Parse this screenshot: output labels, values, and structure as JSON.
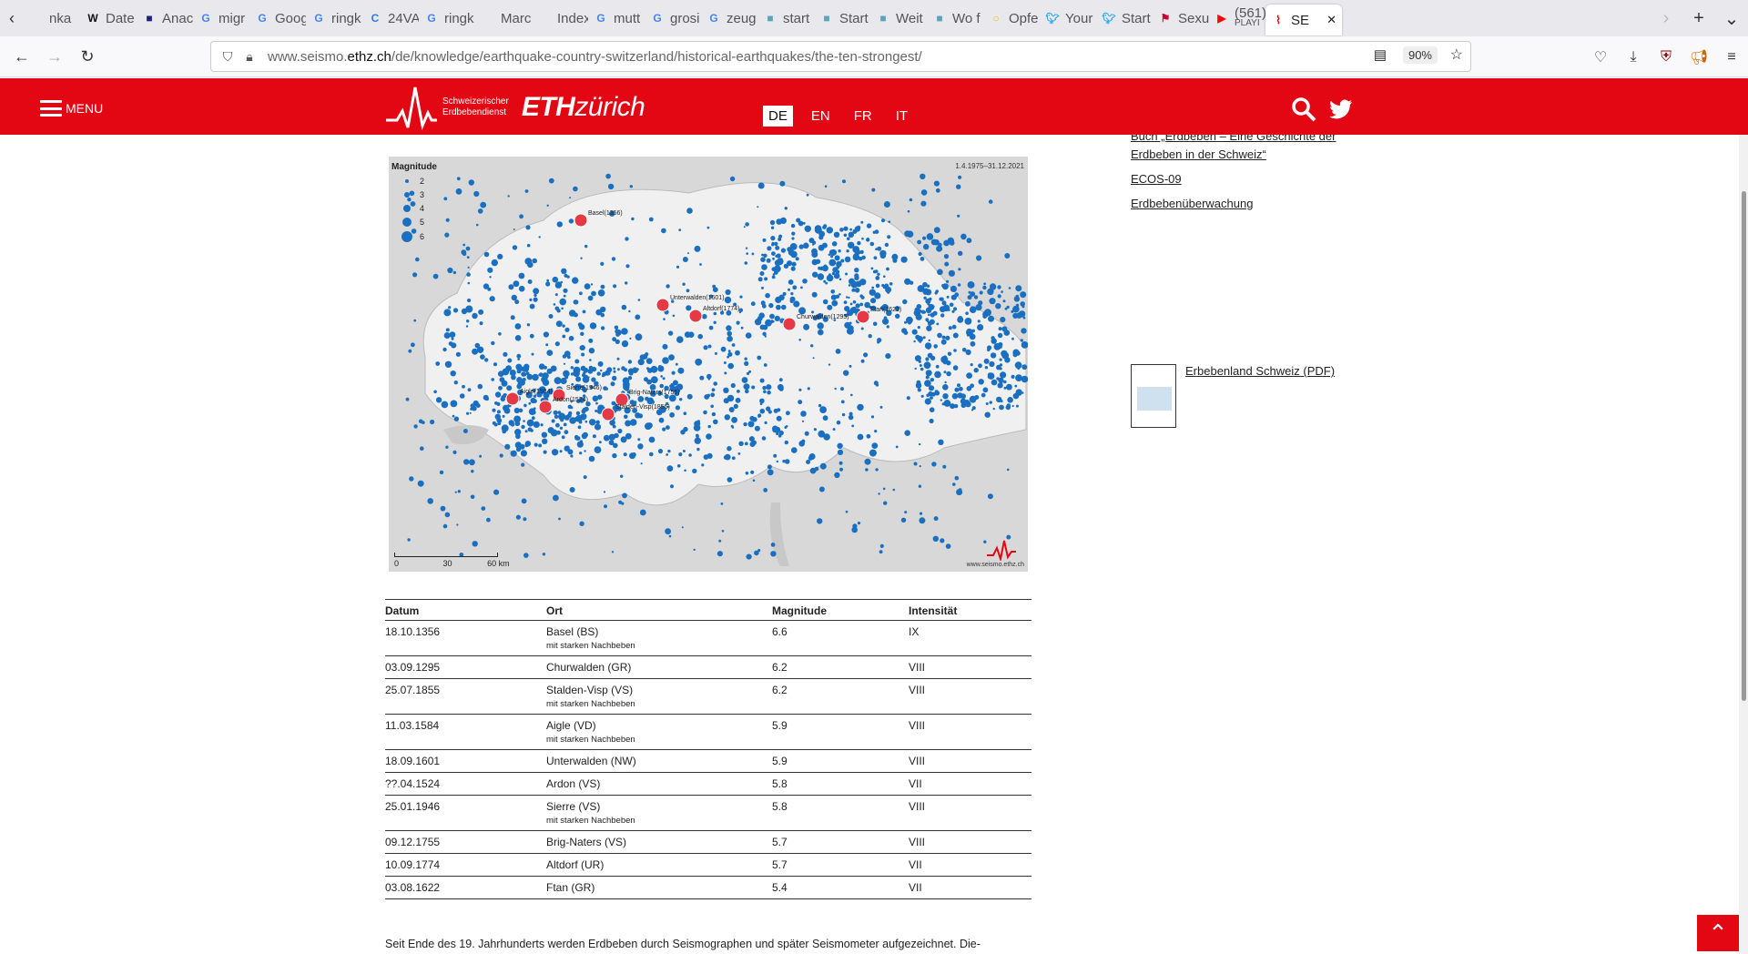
{
  "browser": {
    "tabs": [
      {
        "label": "nka",
        "icon": "text"
      },
      {
        "label": "Date",
        "icon": "W"
      },
      {
        "label": "Anac",
        "icon": "square-blue"
      },
      {
        "label": "migr",
        "icon": "G"
      },
      {
        "label": "Goog",
        "icon": "G-translate"
      },
      {
        "label": "ringk",
        "icon": "G"
      },
      {
        "label": "24VA",
        "icon": "C"
      },
      {
        "label": "ringk",
        "icon": "G"
      },
      {
        "label": "Marc",
        "icon": "text"
      },
      {
        "label": "Index of",
        "icon": "none"
      },
      {
        "label": "mutt",
        "icon": "G"
      },
      {
        "label": "grosi",
        "icon": "G"
      },
      {
        "label": "zeug",
        "icon": "G"
      },
      {
        "label": "start",
        "icon": "square-teal"
      },
      {
        "label": "Start",
        "icon": "square-teal"
      },
      {
        "label": "Weit",
        "icon": "square-teal"
      },
      {
        "label": "Wo f",
        "icon": "square-teal"
      },
      {
        "label": "Opfe",
        "icon": "circle-yellow"
      },
      {
        "label": "Your",
        "icon": "twitter"
      },
      {
        "label": "Start",
        "icon": "twitter"
      },
      {
        "label": "Sexu",
        "icon": "flag"
      },
      {
        "label": "(561)",
        "sub": "PLAYI",
        "icon": "youtube"
      },
      {
        "label": "SE",
        "icon": "seismo",
        "active": true
      }
    ],
    "url_prefix": "www.seismo.",
    "url_domain": "ethz.ch",
    "url_path": "/de/knowledge/earthquake-country-switzerland/historical-earthquakes/the-ten-strongest/",
    "zoom": "90%",
    "ext_badge": "2"
  },
  "header": {
    "menu_label": "MENU",
    "org_line1": "Schweizerischer",
    "org_line2": "Erdbebendienst",
    "eth_bold": "ETH",
    "eth_light": "zürich",
    "languages": [
      "DE",
      "EN",
      "FR",
      "IT"
    ],
    "active_language": "DE"
  },
  "map": {
    "legend_title": "Magnitude",
    "legend": [
      "2",
      "3",
      "4",
      "5",
      "6"
    ],
    "date_range": "1.4.1975–31.12.2021",
    "scale_labels": [
      "0",
      "30",
      "60 km"
    ],
    "credit": "www.seismo.ethz.ch",
    "quakes": [
      {
        "label": "Basel(1356)"
      },
      {
        "label": "Unterwalden(1601)"
      },
      {
        "label": "Altdorf(1774)"
      },
      {
        "label": "Churwalden(1295)"
      },
      {
        "label": "Ftan(1622)"
      },
      {
        "label": "Aigle(1584)"
      },
      {
        "label": "Sierre(1946)"
      },
      {
        "label": "Ardon(1524)"
      },
      {
        "label": "Brig-Naters(1755)"
      },
      {
        "label": "Stalden-Visp(1855)"
      }
    ]
  },
  "table": {
    "headers": [
      "Datum",
      "Ort",
      "Magnitude",
      "Intensität"
    ],
    "rows": [
      {
        "date": "18.10.1356",
        "place": "Basel (BS)",
        "note": "mit starken Nachbeben",
        "mag": "6.6",
        "int": "IX"
      },
      {
        "date": "03.09.1295",
        "place": "Churwalden (GR)",
        "note": "",
        "mag": "6.2",
        "int": "VIII"
      },
      {
        "date": "25.07.1855",
        "place": "Stalden-Visp (VS)",
        "note": "mit starken Nachbeben",
        "mag": "6.2",
        "int": "VIII"
      },
      {
        "date": "11.03.1584",
        "place": "Aigle (VD)",
        "note": "mit starken Nachbeben",
        "mag": "5.9",
        "int": "VIII"
      },
      {
        "date": "18.09.1601",
        "place": "Unterwalden (NW)",
        "note": "",
        "mag": "5.9",
        "int": "VIII"
      },
      {
        "date": "??.04.1524",
        "place": "Ardon (VS)",
        "note": "",
        "mag": "5.8",
        "int": "VII"
      },
      {
        "date": "25.01.1946",
        "place": "Sierre (VS)",
        "note": "mit starken Nachbeben",
        "mag": "5.8",
        "int": "VIII"
      },
      {
        "date": "09.12.1755",
        "place": "Brig-Naters (VS)",
        "note": "",
        "mag": "5.7",
        "int": "VIII"
      },
      {
        "date": "10.09.1774",
        "place": "Altdorf (UR)",
        "note": "",
        "mag": "5.7",
        "int": "VII"
      },
      {
        "date": "03.08.1622",
        "place": "Ftan (GR)",
        "note": "",
        "mag": "5.4",
        "int": "VII"
      }
    ]
  },
  "paragraph": "Seit Ende des 19. Jahrhunderts werden Erdbeben durch Seismographen und später Seismometer aufgezeichnet. Die-",
  "sidebar": {
    "links": [
      "Buch „Erdbeben – Eine Geschichte der Erdbeben in der Schweiz“",
      "ECOS-09",
      "Erdbebenüberwachung"
    ],
    "pdf_label": "Erbebenland Schweiz (PDF)"
  }
}
